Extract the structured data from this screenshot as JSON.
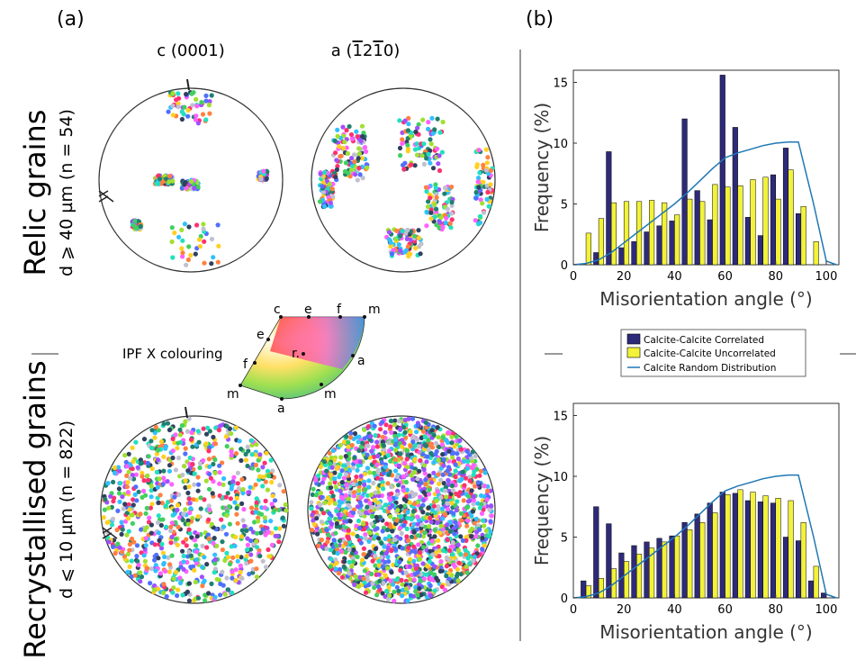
{
  "panel_labels": {
    "a": "(a)",
    "b": "(b)"
  },
  "pole_figure_headers": {
    "c": "c (0001)",
    "a": "a (Ā0̄)"
  },
  "pole_figure_header_a_parts": {
    "pre": "a (",
    "d1": "1",
    "d2": "2",
    "d3": "1",
    "d4": "0",
    "post": ")"
  },
  "row_labels": {
    "relic_title": "Relic grains",
    "relic_sub": "d ⩾ 40 µm (n = 54)",
    "recryst_title": "Recrystallised grains",
    "recryst_sub": "d ⩽ 10 µm (n = 822)"
  },
  "ipf_key": {
    "label": "IPF X colouring",
    "vertex_labels": {
      "c": "c",
      "e_top": "e",
      "f_top": "f",
      "m_top": "m",
      "e_left": "e",
      "f_left": "f",
      "m_left": "m",
      "r": "r.",
      "a_right": "a",
      "m_bottom": "m",
      "a_bottom": "a"
    }
  },
  "legend": {
    "correlated": "Calcite-Calcite Correlated",
    "uncorrelated": "Calcite-Calcite Uncorrelated",
    "random": "Calcite Random Distribution"
  },
  "colors": {
    "correlated": "#2e2a7a",
    "uncorrelated": "#f2f23a",
    "random": "#1f77b4",
    "divider": "#999999"
  },
  "chart_data": [
    {
      "type": "bar",
      "xlabel": "Misorientation angle (°)",
      "ylabel": "Frequency (%)",
      "xlim": [
        0,
        105
      ],
      "ylim": [
        0,
        16
      ],
      "xticks": [
        0,
        20,
        40,
        60,
        80,
        100
      ],
      "yticks": [
        0,
        5,
        10,
        15
      ],
      "categories": [
        5,
        10,
        15,
        20,
        25,
        30,
        35,
        40,
        45,
        50,
        55,
        60,
        65,
        70,
        75,
        80,
        85,
        90,
        95,
        100
      ],
      "series": [
        {
          "name": "Calcite-Calcite Correlated",
          "values": [
            0.0,
            1.0,
            9.3,
            1.4,
            1.9,
            2.7,
            3.2,
            3.6,
            12.0,
            6.1,
            3.7,
            15.6,
            11.3,
            3.9,
            2.4,
            7.4,
            9.6,
            4.2,
            0.0,
            0.0
          ]
        },
        {
          "name": "Calcite-Calcite Uncorrelated",
          "values": [
            2.6,
            3.8,
            5.1,
            5.2,
            5.2,
            5.3,
            5.1,
            4.1,
            5.4,
            5.2,
            6.6,
            6.4,
            6.5,
            7.0,
            7.2,
            5.4,
            7.8,
            4.8,
            1.9,
            0.0
          ]
        }
      ],
      "random_distribution": {
        "name": "Calcite Random Distribution",
        "x": [
          0,
          5,
          10,
          15,
          20,
          25,
          30,
          35,
          40,
          45,
          50,
          55,
          60,
          65,
          70,
          75,
          80,
          85,
          89,
          95,
          100,
          104
        ],
        "y": [
          0,
          0.1,
          0.4,
          1.0,
          1.8,
          2.6,
          3.4,
          4.2,
          5.0,
          5.9,
          6.9,
          7.9,
          8.8,
          9.2,
          9.5,
          9.8,
          10.0,
          10.1,
          10.1,
          5.0,
          0.3,
          0
        ]
      }
    },
    {
      "type": "bar",
      "xlabel": "Misorientation angle (°)",
      "ylabel": "Frequency (%)",
      "xlim": [
        0,
        105
      ],
      "ylim": [
        0,
        16
      ],
      "xticks": [
        0,
        20,
        40,
        60,
        80,
        100
      ],
      "yticks": [
        0,
        5,
        10,
        15
      ],
      "categories": [
        5,
        10,
        15,
        20,
        25,
        30,
        35,
        40,
        45,
        50,
        55,
        60,
        65,
        70,
        75,
        80,
        85,
        90,
        95,
        100
      ],
      "series": [
        {
          "name": "Calcite-Calcite Correlated",
          "values": [
            1.4,
            7.5,
            6.1,
            3.7,
            4.3,
            4.6,
            4.9,
            5.1,
            6.2,
            6.9,
            7.8,
            8.7,
            8.6,
            8.0,
            7.9,
            7.8,
            5.0,
            4.7,
            1.4,
            0.4
          ]
        },
        {
          "name": "Calcite-Calcite Uncorrelated",
          "values": [
            1.0,
            1.6,
            2.4,
            3.0,
            3.6,
            4.1,
            4.6,
            5.1,
            5.6,
            6.2,
            7.0,
            8.5,
            8.9,
            8.7,
            8.4,
            8.2,
            8.0,
            6.2,
            2.6,
            0.0
          ]
        }
      ],
      "random_distribution": {
        "name": "Calcite Random Distribution",
        "x": [
          0,
          5,
          10,
          15,
          20,
          25,
          30,
          35,
          40,
          45,
          50,
          55,
          60,
          65,
          70,
          75,
          80,
          85,
          89,
          95,
          100,
          104
        ],
        "y": [
          0,
          0.1,
          0.4,
          1.0,
          1.8,
          2.6,
          3.4,
          4.2,
          5.0,
          5.9,
          6.9,
          7.9,
          8.8,
          9.2,
          9.5,
          9.8,
          10.0,
          10.1,
          10.1,
          5.0,
          0.3,
          0
        ]
      }
    }
  ]
}
